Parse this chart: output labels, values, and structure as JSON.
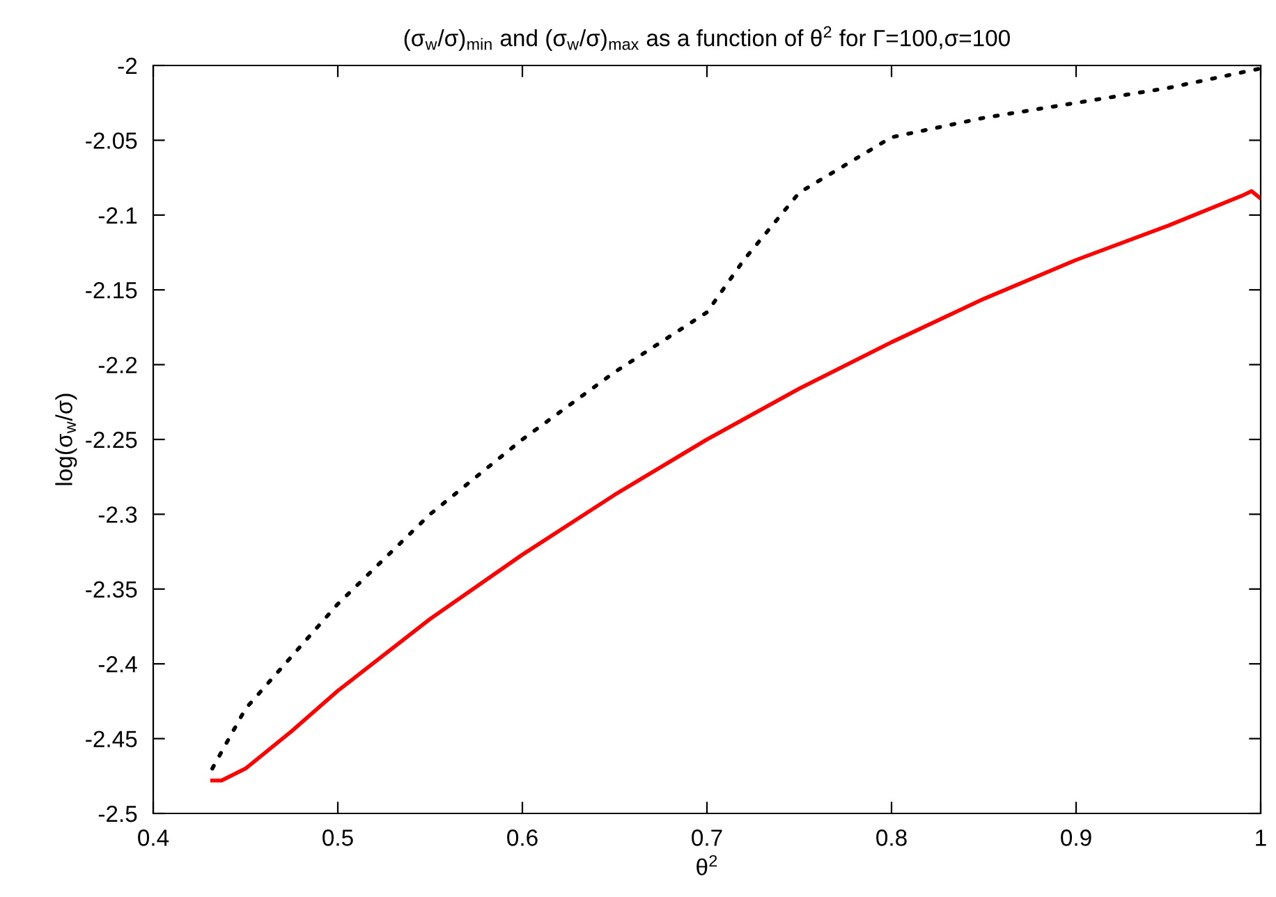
{
  "chart_data": {
    "type": "line",
    "title": "(σ$_{w}$/σ)$_{min}$ and (σ$_{w}$/σ)$_{max}$ as a function of θ$^{2}$ for Γ=100,σ=100",
    "xlabel": "θ$^{2}$",
    "ylabel": "log(σ$_{w}$/σ)",
    "xlim": [
      0.4,
      1
    ],
    "ylim": [
      -2.5,
      -2
    ],
    "xticks": [
      0.4,
      0.5,
      0.6,
      0.7,
      0.8,
      0.9,
      1
    ],
    "yticks": [
      -2.5,
      -2.45,
      -2.4,
      -2.35,
      -2.3,
      -2.25,
      -2.2,
      -2.15,
      -2.1,
      -2.05,
      -2
    ],
    "grid": false,
    "legend": false,
    "series": [
      {
        "color": "#000000",
        "line_style": "dotted",
        "x": [
          0.432,
          0.45,
          0.5,
          0.55,
          0.6,
          0.65,
          0.7,
          0.72,
          0.75,
          0.8,
          0.85,
          0.9,
          0.95,
          1.0
        ],
        "values": [
          -2.47,
          -2.43,
          -2.36,
          -2.3,
          -2.25,
          -2.205,
          -2.165,
          -2.13,
          -2.085,
          -2.048,
          -2.035,
          -2.025,
          -2.015,
          -2.002
        ]
      },
      {
        "color": "#ff0000",
        "line_style": "solid",
        "x": [
          0.432,
          0.437,
          0.45,
          0.475,
          0.5,
          0.55,
          0.6,
          0.65,
          0.7,
          0.75,
          0.8,
          0.85,
          0.9,
          0.95,
          0.99,
          0.995,
          1.0
        ],
        "values": [
          -2.478,
          -2.478,
          -2.47,
          -2.445,
          -2.418,
          -2.37,
          -2.327,
          -2.287,
          -2.25,
          -2.216,
          -2.185,
          -2.156,
          -2.13,
          -2.107,
          -2.087,
          -2.084,
          -2.089
        ]
      }
    ]
  }
}
